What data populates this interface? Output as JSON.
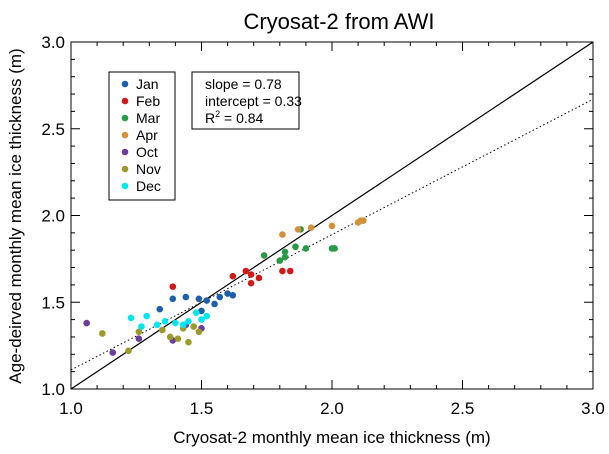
{
  "chart_data": {
    "type": "scatter",
    "title": "Cryosat-2 from AWI",
    "xlabel": "Cryosat-2 monthly mean ice thickness (m)",
    "ylabel": "Age-deirved monthly mean ice thickness (m)",
    "xlim": [
      1.0,
      3.0
    ],
    "ylim": [
      1.0,
      3.0
    ],
    "x_ticks": [
      "1.0",
      "1.5",
      "2.0",
      "2.5",
      "3.0"
    ],
    "y_ticks": [
      "1.0",
      "1.5",
      "2.0",
      "2.5",
      "3.0"
    ],
    "grid": false,
    "legend_position": "top-left",
    "stats": {
      "slope_text": "slope = 0.78",
      "intercept_text": "intercept = 0.33",
      "r2_prefix": "R",
      "r2_sup": "2",
      "r2_suffix": " = 0.84"
    },
    "reference_lines": [
      {
        "kind": "one-to-one",
        "style": "solid",
        "slope": 1.0,
        "intercept": 0.0
      },
      {
        "kind": "regression",
        "style": "dotted",
        "slope": 0.78,
        "intercept": 0.33
      }
    ],
    "series": [
      {
        "name": "Jan",
        "color": "#1f5fa8",
        "points": [
          [
            1.34,
            1.46
          ],
          [
            1.39,
            1.52
          ],
          [
            1.44,
            1.53
          ],
          [
            1.49,
            1.52
          ],
          [
            1.52,
            1.51
          ],
          [
            1.57,
            1.53
          ],
          [
            1.6,
            1.55
          ],
          [
            1.62,
            1.54
          ],
          [
            1.55,
            1.49
          ],
          [
            1.5,
            1.45
          ]
        ]
      },
      {
        "name": "Feb",
        "color": "#d01a1a",
        "points": [
          [
            1.39,
            1.59
          ],
          [
            1.62,
            1.65
          ],
          [
            1.67,
            1.68
          ],
          [
            1.69,
            1.66
          ],
          [
            1.69,
            1.61
          ],
          [
            1.72,
            1.64
          ],
          [
            1.81,
            1.68
          ],
          [
            1.84,
            1.68
          ]
        ]
      },
      {
        "name": "Mar",
        "color": "#2a9a48",
        "points": [
          [
            1.74,
            1.77
          ],
          [
            1.8,
            1.74
          ],
          [
            1.82,
            1.76
          ],
          [
            1.82,
            1.79
          ],
          [
            1.86,
            1.82
          ],
          [
            1.88,
            1.92
          ],
          [
            1.9,
            1.81
          ],
          [
            2.0,
            1.81
          ],
          [
            2.01,
            1.81
          ]
        ]
      },
      {
        "name": "Apr",
        "color": "#d2913a",
        "points": [
          [
            1.81,
            1.89
          ],
          [
            1.87,
            1.92
          ],
          [
            1.92,
            1.93
          ],
          [
            2.0,
            1.94
          ],
          [
            2.1,
            1.96
          ],
          [
            2.11,
            1.97
          ],
          [
            2.12,
            1.97
          ]
        ]
      },
      {
        "name": "Oct",
        "color": "#6a3d9a",
        "points": [
          [
            1.06,
            1.38
          ],
          [
            1.16,
            1.21
          ],
          [
            1.26,
            1.29
          ],
          [
            1.39,
            1.28
          ],
          [
            1.44,
            1.37
          ],
          [
            1.5,
            1.35
          ]
        ]
      },
      {
        "name": "Nov",
        "color": "#9c9a2a",
        "points": [
          [
            1.12,
            1.32
          ],
          [
            1.22,
            1.22
          ],
          [
            1.26,
            1.33
          ],
          [
            1.35,
            1.34
          ],
          [
            1.38,
            1.3
          ],
          [
            1.41,
            1.29
          ],
          [
            1.43,
            1.35
          ],
          [
            1.45,
            1.27
          ],
          [
            1.47,
            1.36
          ],
          [
            1.49,
            1.33
          ]
        ]
      },
      {
        "name": "Dec",
        "color": "#00e5ee",
        "points": [
          [
            1.23,
            1.41
          ],
          [
            1.29,
            1.42
          ],
          [
            1.36,
            1.39
          ],
          [
            1.4,
            1.38
          ],
          [
            1.43,
            1.37
          ],
          [
            1.45,
            1.39
          ],
          [
            1.48,
            1.44
          ],
          [
            1.5,
            1.4
          ],
          [
            1.52,
            1.42
          ],
          [
            1.33,
            1.37
          ],
          [
            1.27,
            1.36
          ]
        ]
      }
    ]
  }
}
